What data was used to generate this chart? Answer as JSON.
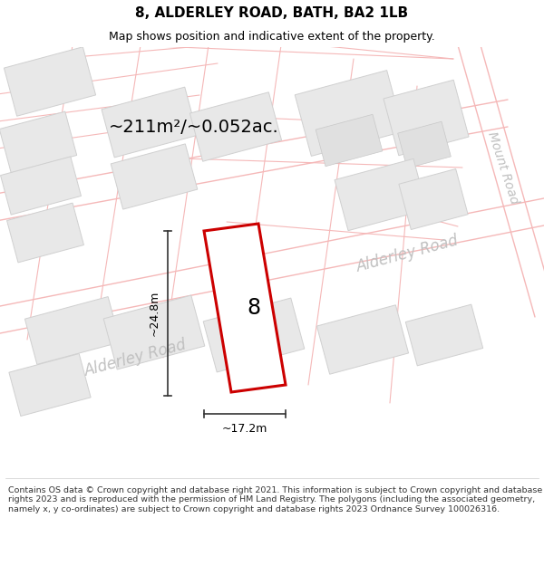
{
  "title": "8, ALDERLEY ROAD, BATH, BA2 1LB",
  "subtitle": "Map shows position and indicative extent of the property.",
  "area_label": "~211m²/~0.052ac.",
  "property_number": "8",
  "width_label": "~17.2m",
  "height_label": "~24.8m",
  "road_label_lower": "Alderley Road",
  "road_label_upper": "Alderley Road",
  "road_label_mount": "Mount Road",
  "footer": "Contains OS data © Crown copyright and database right 2021. This information is subject to Crown copyright and database rights 2023 and is reproduced with the permission of HM Land Registry. The polygons (including the associated geometry, namely x, y co-ordinates) are subject to Crown copyright and database rights 2023 Ordnance Survey 100026316.",
  "bg_color": "#ffffff",
  "cadastral_color": "#f5b8b8",
  "block_fill": "#e8e8e8",
  "block_edge": "#d0d0d0",
  "property_fill": "#ffffff",
  "property_edge": "#cc0000",
  "dim_color": "#333333",
  "road_text_color": "#c0c0c0",
  "title_color": "#000000",
  "footer_color": "#333333",
  "title_fontsize": 11,
  "subtitle_fontsize": 9,
  "area_fontsize": 14,
  "dim_fontsize": 9,
  "road_fontsize": 12,
  "mount_fontsize": 10,
  "num_fontsize": 17,
  "footer_fontsize": 6.8
}
